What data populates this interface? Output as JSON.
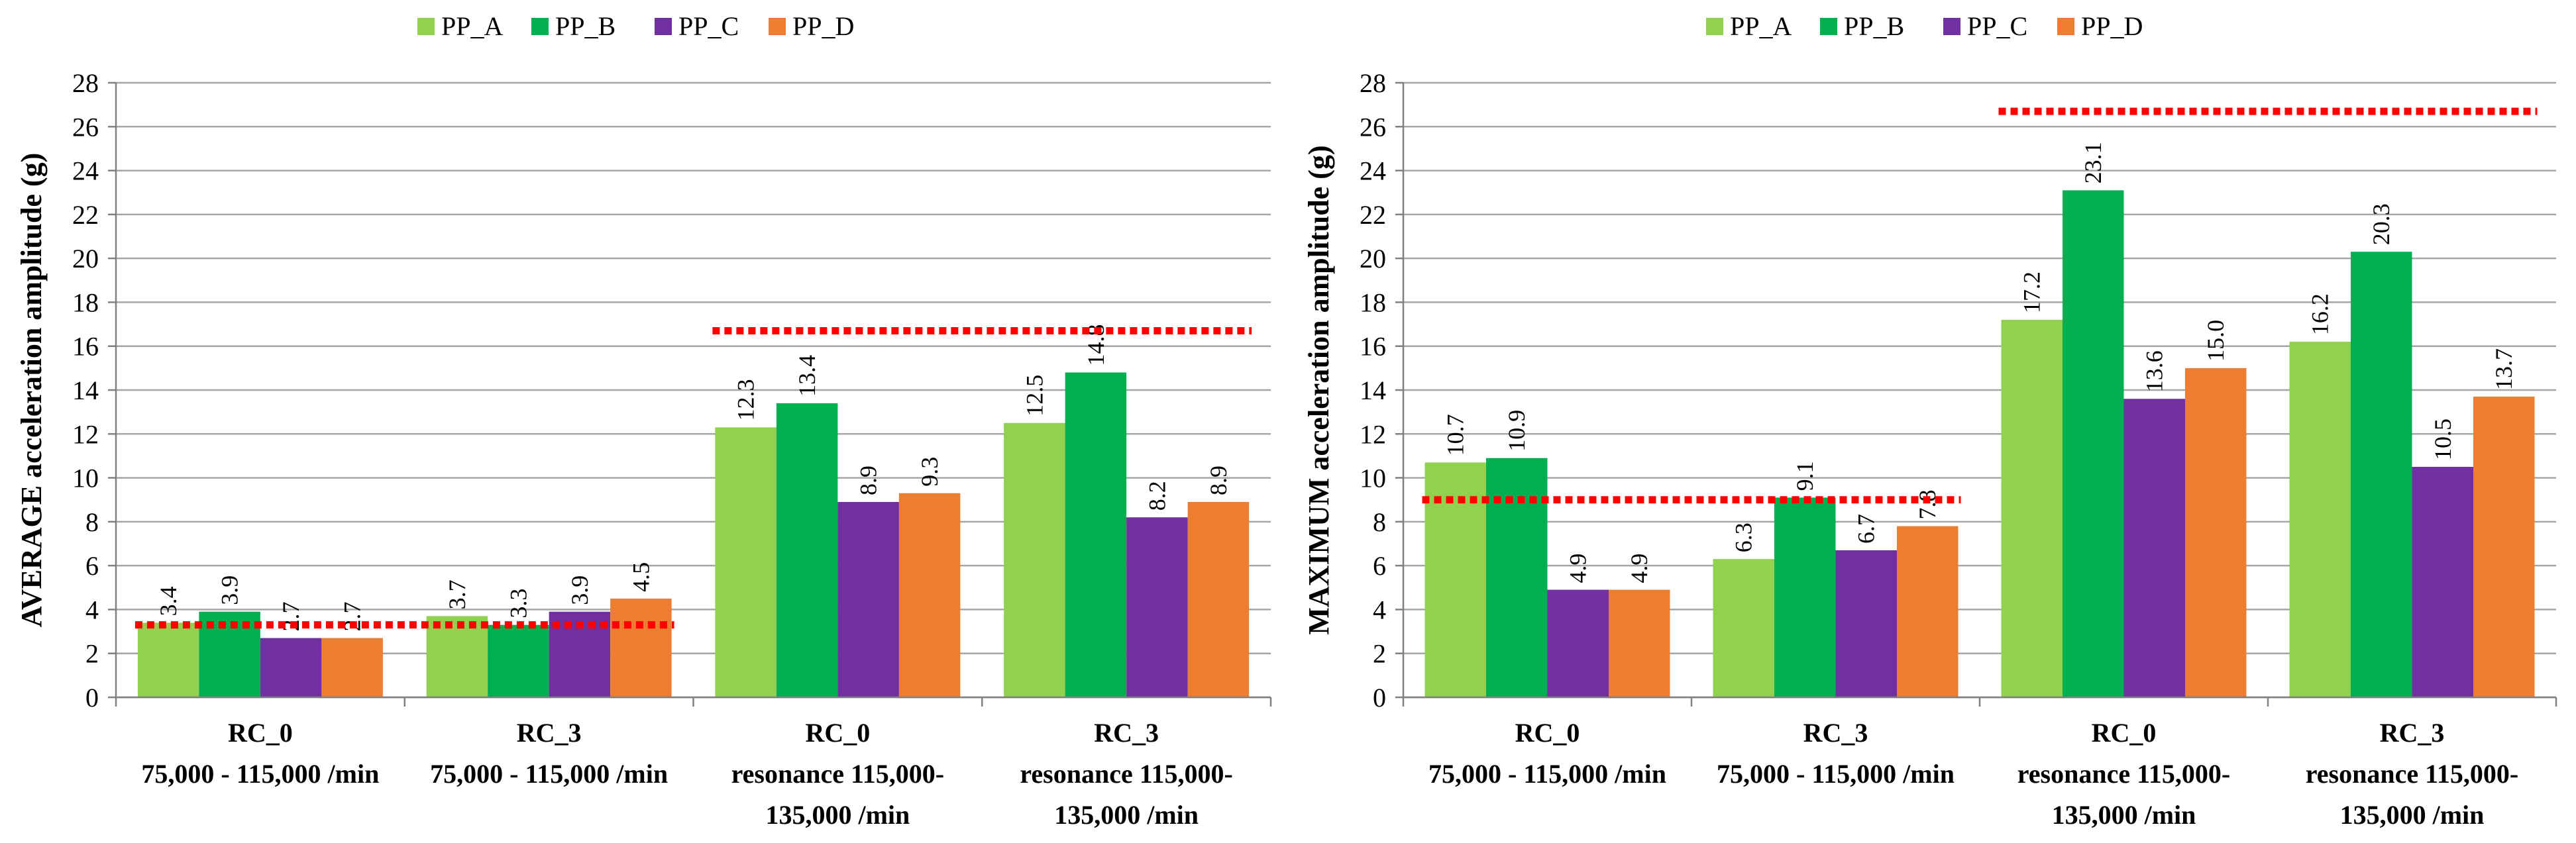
{
  "chart_data": [
    {
      "type": "bar",
      "ylabel": "AVERAGE acceleration amplitude  (g)",
      "ylim": [
        0,
        28
      ],
      "ytick_step": 2,
      "categories": [
        [
          "RC_0",
          "75,000 - 115,000 /min"
        ],
        [
          "RC_3",
          "75,000 - 115,000 /min"
        ],
        [
          "RC_0",
          "resonance 115,000-",
          "135,000 /min"
        ],
        [
          "RC_3",
          "resonance 115,000-",
          "135,000 /min"
        ]
      ],
      "series": [
        {
          "name": "PP_A",
          "color": "#92D050",
          "values": [
            3.4,
            3.7,
            12.3,
            12.5
          ],
          "labels": [
            "3.4",
            "3.7",
            "12.3",
            "12.5"
          ]
        },
        {
          "name": "PP_B",
          "color": "#00B050",
          "values": [
            3.9,
            3.3,
            13.4,
            14.8
          ],
          "labels": [
            "3.9",
            "3.3",
            "13.4",
            "14.8"
          ]
        },
        {
          "name": "PP_C",
          "color": "#7030A0",
          "values": [
            2.7,
            3.9,
            8.9,
            8.2
          ],
          "labels": [
            "2.7",
            "3.9",
            "8.9",
            "8.2"
          ]
        },
        {
          "name": "PP_D",
          "color": "#ED7D31",
          "values": [
            2.7,
            4.5,
            9.3,
            8.9
          ],
          "labels": [
            "2.7",
            "4.5",
            "9.3",
            "8.9"
          ]
        }
      ],
      "reference_lines": [
        {
          "color": "#FF0000",
          "value": 3.3,
          "from_category": 0,
          "to_category": 1
        },
        {
          "color": "#FF0000",
          "value": 16.7,
          "from_category": 2,
          "to_category": 3
        }
      ],
      "grid": true,
      "legend": "top-center"
    },
    {
      "type": "bar",
      "ylabel": "MAXIMUM acceleration amplitude  (g)",
      "ylim": [
        0,
        28
      ],
      "ytick_step": 2,
      "categories": [
        [
          "RC_0",
          "75,000 - 115,000 /min"
        ],
        [
          "RC_3",
          "75,000 - 115,000 /min"
        ],
        [
          "RC_0",
          "resonance 115,000-",
          "135,000 /min"
        ],
        [
          "RC_3",
          "resonance 115,000-",
          "135,000 /min"
        ]
      ],
      "series": [
        {
          "name": "PP_A",
          "color": "#92D050",
          "values": [
            10.7,
            6.3,
            17.2,
            16.2
          ],
          "labels": [
            "10.7",
            "6.3",
            "17.2",
            "16.2"
          ]
        },
        {
          "name": "PP_B",
          "color": "#00B050",
          "values": [
            10.9,
            9.1,
            23.1,
            20.3
          ],
          "labels": [
            "10.9",
            "9.1",
            "23.1",
            "20.3"
          ]
        },
        {
          "name": "PP_C",
          "color": "#7030A0",
          "values": [
            4.9,
            6.7,
            13.6,
            10.5
          ],
          "labels": [
            "4.9",
            "6.7",
            "13.6",
            "10.5"
          ]
        },
        {
          "name": "PP_D",
          "color": "#ED7D31",
          "values": [
            4.9,
            7.8,
            15.0,
            13.7
          ],
          "labels": [
            "4.9",
            "7.8",
            "15.0",
            "13.7"
          ]
        }
      ],
      "reference_lines": [
        {
          "color": "#FF0000",
          "value": 9.0,
          "from_category": 0,
          "to_category": 1
        },
        {
          "color": "#FF0000",
          "value": 26.7,
          "from_category": 2,
          "to_category": 3
        }
      ],
      "grid": true,
      "legend": "top-center"
    }
  ]
}
